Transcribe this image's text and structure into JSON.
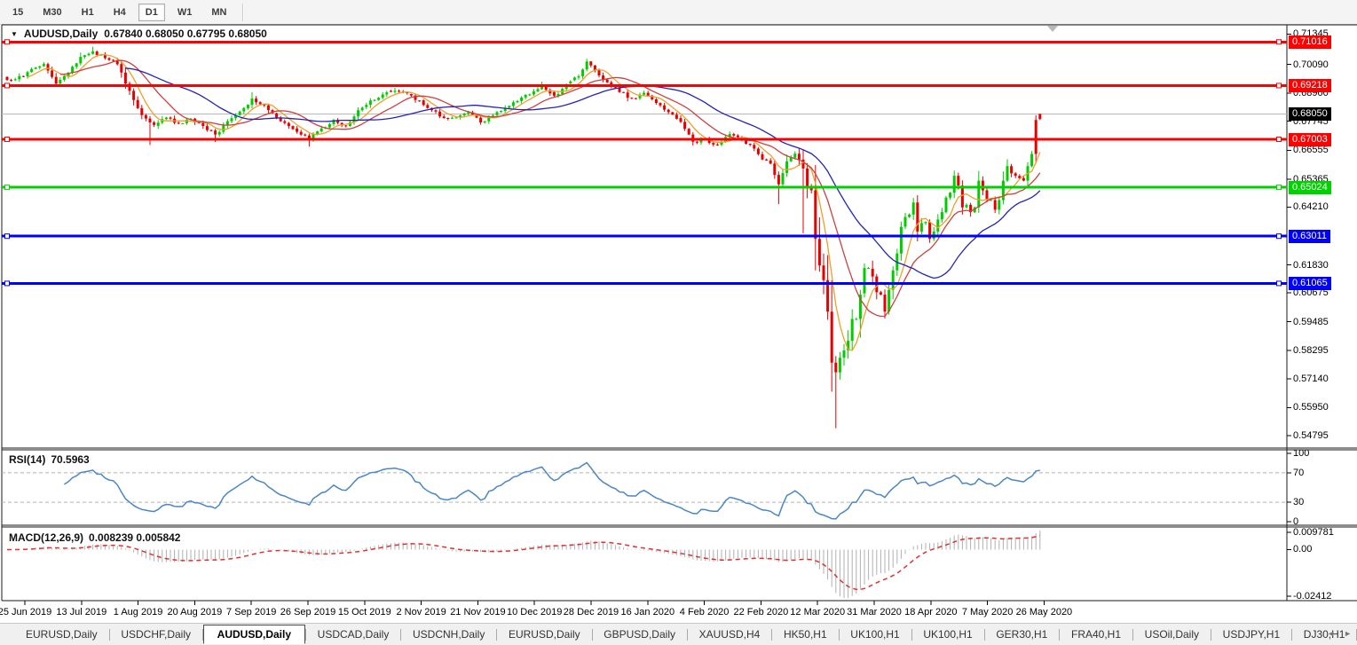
{
  "toolbar": {
    "timeframes": [
      {
        "label": "15",
        "active": false
      },
      {
        "label": "M30",
        "active": false
      },
      {
        "label": "H1",
        "active": false
      },
      {
        "label": "H4",
        "active": false
      },
      {
        "label": "D1",
        "active": true
      },
      {
        "label": "W1",
        "active": false
      },
      {
        "label": "MN",
        "active": false
      }
    ]
  },
  "chart": {
    "title": {
      "symbol": "AUDUSD,Daily",
      "ohlc": "0.67840 0.68050 0.67795 0.68050"
    }
  },
  "price_axis": {
    "ticks": [
      "0.71345",
      "0.70090",
      "0.68900",
      "0.67745",
      "0.66555",
      "0.65365",
      "0.64210",
      "0.61830",
      "0.60675",
      "0.59485",
      "0.58295",
      "0.57140",
      "0.55950",
      "0.54795"
    ],
    "badges": [
      {
        "value": "0.71016",
        "color": "#ff0000"
      },
      {
        "value": "0.69218",
        "color": "#ff0000"
      },
      {
        "value": "0.68050",
        "color": "#000000"
      },
      {
        "value": "0.67003",
        "color": "#ff0000"
      },
      {
        "value": "0.65024",
        "color": "#00d200"
      },
      {
        "value": "0.63011",
        "color": "#0000ff"
      },
      {
        "value": "0.61065",
        "color": "#0000ff"
      }
    ]
  },
  "rsi": {
    "label": "RSI(14)",
    "value": "70.5963",
    "ticks": [
      {
        "label": "100",
        "value": 100
      },
      {
        "label": "70",
        "value": 70
      },
      {
        "label": "30",
        "value": 30
      },
      {
        "label": "0",
        "value": 0
      }
    ],
    "levels": [
      70,
      30
    ],
    "color": "#4a86c8"
  },
  "macd": {
    "label": "MACD(12,26,9)",
    "value": "0.008239 0.005842",
    "ticks": [
      {
        "label": "0.009781",
        "value": 0.009781
      },
      {
        "label": "0.00",
        "value": 0
      },
      {
        "label": "-0.02412",
        "value": -0.02412
      }
    ],
    "hist_color": "#b0b0b0",
    "signal_color": "#e03030"
  },
  "date_axis": {
    "labels": [
      "25 Jun 2019",
      "13 Jul 2019",
      "1 Aug 2019",
      "20 Aug 2019",
      "7 Sep 2019",
      "26 Sep 2019",
      "15 Oct 2019",
      "2 Nov 2019",
      "21 Nov 2019",
      "10 Dec 2019",
      "28 Dec 2019",
      "16 Jan 2020",
      "4 Feb 2020",
      "22 Feb 2020",
      "12 Mar 2020",
      "31 Mar 2020",
      "18 Apr 2020",
      "7 May 2020",
      "26 May 2020"
    ]
  },
  "tabs": {
    "items": [
      {
        "label": "EURUSD,Daily",
        "active": false
      },
      {
        "label": "USDCHF,Daily",
        "active": false
      },
      {
        "label": "AUDUSD,Daily",
        "active": true
      },
      {
        "label": "USDCAD,Daily",
        "active": false
      },
      {
        "label": "USDCNH,Daily",
        "active": false
      },
      {
        "label": "EURUSD,Daily",
        "active": false
      },
      {
        "label": "GBPUSD,Daily",
        "active": false
      },
      {
        "label": "XAUUSD,H4",
        "active": false
      },
      {
        "label": "HK50,H1",
        "active": false
      },
      {
        "label": "UK100,H1",
        "active": false
      },
      {
        "label": "UK100,H1",
        "active": false
      },
      {
        "label": "GER30,H1",
        "active": false
      },
      {
        "label": "FRA40,H1",
        "active": false
      },
      {
        "label": "USOil,Daily",
        "active": false
      },
      {
        "label": "USDJPY,H1",
        "active": false
      },
      {
        "label": "DJ30,H1",
        "active": false
      }
    ],
    "scroll_left": "◄",
    "scroll_right": "►"
  },
  "chart_data": {
    "type": "candlestick",
    "symbol": "AUDUSD",
    "timeframe": "Daily",
    "current_bar": {
      "open": 0.6784,
      "high": 0.6805,
      "low": 0.67795,
      "close": 0.6805
    },
    "y_axis": {
      "top_price": 0.7172,
      "bottom_price": 0.5428
    },
    "x_axis": {
      "first_label": "25 Jun 2019",
      "last_label": "26 May 2020"
    },
    "num_candles": 254,
    "up_color": "#00cc00",
    "down_color": "#e60000",
    "current_price_line": {
      "price": 0.6805,
      "color": "#b8b8b8"
    },
    "horizontal_lines": [
      {
        "price": 0.71016,
        "color": "#ff0000"
      },
      {
        "price": 0.69218,
        "color": "#ff0000"
      },
      {
        "price": 0.67003,
        "color": "#ff0000"
      },
      {
        "price": 0.65024,
        "color": "#00d200"
      },
      {
        "price": 0.63011,
        "color": "#0000ff"
      },
      {
        "price": 0.61065,
        "color": "#0000ff"
      }
    ],
    "moving_averages": [
      {
        "period": 6,
        "color": "#f0a028"
      },
      {
        "period": 14,
        "color": "#cc4040"
      },
      {
        "period": 30,
        "color": "#2222bb"
      }
    ],
    "rsi_current": 70.5963,
    "macd_current": 0.008239,
    "macd_signal_current": 0.005842,
    "macd_range": [
      -0.02412,
      0.009781
    ],
    "close_keyframes": [
      [
        0,
        0.6945
      ],
      [
        4,
        0.696
      ],
      [
        6,
        0.699
      ],
      [
        9,
        0.701
      ],
      [
        12,
        0.693
      ],
      [
        15,
        0.6975
      ],
      [
        18,
        0.704
      ],
      [
        21,
        0.7062
      ],
      [
        24,
        0.7035
      ],
      [
        27,
        0.701
      ],
      [
        30,
        0.69
      ],
      [
        33,
        0.68
      ],
      [
        36,
        0.676
      ],
      [
        39,
        0.679
      ],
      [
        42,
        0.6765
      ],
      [
        45,
        0.6785
      ],
      [
        48,
        0.6755
      ],
      [
        51,
        0.672
      ],
      [
        54,
        0.6775
      ],
      [
        57,
        0.6815
      ],
      [
        60,
        0.6868
      ],
      [
        63,
        0.684
      ],
      [
        66,
        0.679
      ],
      [
        69,
        0.6755
      ],
      [
        72,
        0.672
      ],
      [
        74,
        0.67
      ],
      [
        77,
        0.6745
      ],
      [
        80,
        0.678
      ],
      [
        83,
        0.6755
      ],
      [
        86,
        0.682
      ],
      [
        89,
        0.686
      ],
      [
        92,
        0.6885
      ],
      [
        95,
        0.69
      ],
      [
        98,
        0.689
      ],
      [
        101,
        0.686
      ],
      [
        104,
        0.682
      ],
      [
        107,
        0.6788
      ],
      [
        110,
        0.679
      ],
      [
        113,
        0.6812
      ],
      [
        116,
        0.677
      ],
      [
        119,
        0.68
      ],
      [
        122,
        0.683
      ],
      [
        125,
        0.6858
      ],
      [
        128,
        0.6885
      ],
      [
        131,
        0.6916
      ],
      [
        134,
        0.688
      ],
      [
        137,
        0.6925
      ],
      [
        140,
        0.696
      ],
      [
        142,
        0.7021
      ],
      [
        144,
        0.6985
      ],
      [
        147,
        0.6935
      ],
      [
        150,
        0.6895
      ],
      [
        153,
        0.687
      ],
      [
        156,
        0.6892
      ],
      [
        159,
        0.685
      ],
      [
        162,
        0.6812
      ],
      [
        165,
        0.6772
      ],
      [
        168,
        0.669
      ],
      [
        171,
        0.67
      ],
      [
        174,
        0.6677
      ],
      [
        177,
        0.6722
      ],
      [
        180,
        0.67
      ],
      [
        183,
        0.6662
      ],
      [
        185,
        0.6617
      ],
      [
        187,
        0.66
      ],
      [
        189,
        0.6515
      ],
      [
        191,
        0.661
      ],
      [
        193,
        0.6641
      ],
      [
        195,
        0.658
      ],
      [
        196,
        0.65
      ],
      [
        197,
        0.649
      ],
      [
        198,
        0.629
      ],
      [
        199,
        0.618
      ],
      [
        200,
        0.612
      ],
      [
        201,
        0.599
      ],
      [
        202,
        0.578
      ],
      [
        203,
        0.574
      ],
      [
        204,
        0.58
      ],
      [
        205,
        0.583
      ],
      [
        206,
        0.587
      ],
      [
        207,
        0.596
      ],
      [
        208,
        0.596
      ],
      [
        209,
        0.606
      ],
      [
        210,
        0.617
      ],
      [
        211,
        0.617
      ],
      [
        212,
        0.6135
      ],
      [
        213,
        0.607
      ],
      [
        214,
        0.606
      ],
      [
        215,
        0.599
      ],
      [
        216,
        0.608
      ],
      [
        217,
        0.616
      ],
      [
        218,
        0.623
      ],
      [
        219,
        0.634
      ],
      [
        220,
        0.638
      ],
      [
        221,
        0.639
      ],
      [
        222,
        0.644
      ],
      [
        223,
        0.632
      ],
      [
        224,
        0.6355
      ],
      [
        225,
        0.636
      ],
      [
        226,
        0.629
      ],
      [
        227,
        0.632
      ],
      [
        228,
        0.637
      ],
      [
        229,
        0.64
      ],
      [
        230,
        0.646
      ],
      [
        231,
        0.648
      ],
      [
        232,
        0.655
      ],
      [
        233,
        0.651
      ],
      [
        234,
        0.642
      ],
      [
        235,
        0.643
      ],
      [
        236,
        0.64
      ],
      [
        237,
        0.642
      ],
      [
        238,
        0.653
      ],
      [
        239,
        0.649
      ],
      [
        240,
        0.645
      ],
      [
        241,
        0.645
      ],
      [
        242,
        0.641
      ],
      [
        243,
        0.645
      ],
      [
        244,
        0.653
      ],
      [
        245,
        0.659
      ],
      [
        246,
        0.656
      ],
      [
        247,
        0.655
      ],
      [
        248,
        0.654
      ],
      [
        249,
        0.653
      ],
      [
        250,
        0.659
      ],
      [
        251,
        0.664
      ],
      [
        252,
        0.678
      ],
      [
        253,
        0.6805
      ]
    ],
    "wick_overrides": [
      {
        "i": 21,
        "high": 0.7082
      },
      {
        "i": 35,
        "low": 0.6677
      },
      {
        "i": 51,
        "low": 0.6689
      },
      {
        "i": 60,
        "high": 0.6895
      },
      {
        "i": 74,
        "low": 0.667
      },
      {
        "i": 95,
        "high": 0.6913
      },
      {
        "i": 131,
        "high": 0.6938
      },
      {
        "i": 142,
        "high": 0.7032
      },
      {
        "i": 189,
        "low": 0.6433
      },
      {
        "i": 195,
        "low": 0.6313
      },
      {
        "i": 202,
        "low": 0.566
      },
      {
        "i": 203,
        "low": 0.551
      }
    ],
    "force_down_indices": [
      252,
      253
    ]
  }
}
